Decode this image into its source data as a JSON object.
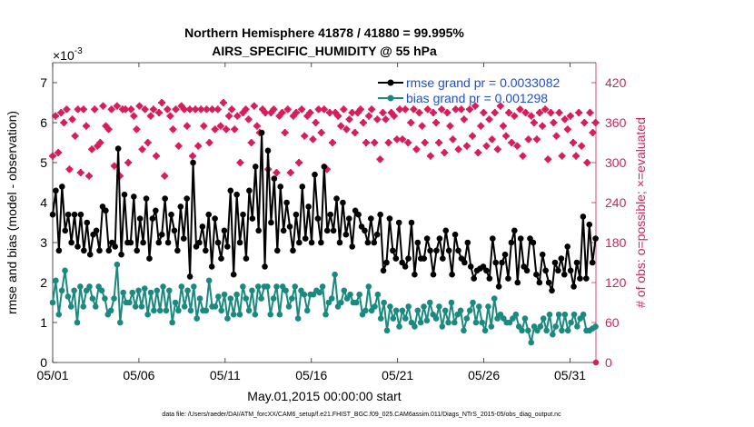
{
  "chart_data": {
    "type": "line",
    "title": [
      "Northern Hemisphere 41878 / 41880 = 99.995%",
      "AIRS_SPECIFIC_HUMIDITY @ 55 hPa"
    ],
    "xlabel": "May.01,2015 00:00:00 start",
    "ylabel_left": "rmse and bias (model - observation)",
    "ylabel_right": "# of obs: o=possible; ×=evaluated",
    "exponent_label": "×10",
    "exponent_power": "-3",
    "left_axis": {
      "ylim": [
        0,
        7.5
      ],
      "ticks": [
        "0",
        "1",
        "2",
        "3",
        "4",
        "5",
        "6",
        "7"
      ]
    },
    "right_axis": {
      "ylim": [
        0,
        450
      ],
      "ticks": [
        "0",
        "60",
        "120",
        "180",
        "240",
        "300",
        "360",
        "420"
      ]
    },
    "x_axis": {
      "xlim": [
        1,
        32.5
      ],
      "tick_values": [
        1,
        6,
        11,
        16,
        21,
        26,
        31
      ],
      "tick_labels": [
        "05/01",
        "05/06",
        "05/11",
        "05/16",
        "05/21",
        "05/26",
        "05/31"
      ]
    },
    "legend": {
      "position": "top-right",
      "entries": [
        "rmse grand pr = 0.0033082",
        "bias grand pr = 0.001298"
      ]
    },
    "footnote": "data file: /Users/raeder/DAI/ATM_forcXX/CAM6_setup/f.e21.FHIST_BGC.f09_025.CAM6assim.011/Diags_NTrS_2015-05/obs_diag_output.nc",
    "colors": {
      "rmse": "#000000",
      "bias": "#1a8a80",
      "obs": "#d61f5a",
      "right_axis": "#d61f5a"
    },
    "series": [
      {
        "name": "rmse",
        "values": [
          3.7,
          4.3,
          2.8,
          4.4,
          3.3,
          3.7,
          3.0,
          3.7,
          2.9,
          3.7,
          2.8,
          3.5,
          2.7,
          3.2,
          3.3,
          2.8,
          3.9,
          3.8,
          2.8,
          3.0,
          2.9,
          5.35,
          2.7,
          4.2,
          3.0,
          3.0,
          4.15,
          2.8,
          3.6,
          3.0,
          4.1,
          2.6,
          3.6,
          3.8,
          3.0,
          3.2,
          4.1,
          3.0,
          3.7,
          3.3,
          2.8,
          3.9,
          3.1,
          4.1,
          2.15,
          5.0,
          2.9,
          3.0,
          3.4,
          2.8,
          3.7,
          2.4,
          3.6,
          3.0,
          2.6,
          3.3,
          2.9,
          4.3,
          2.2,
          4.2,
          3.0,
          3.7,
          2.6,
          4.3,
          3.6,
          4.9,
          3.3,
          5.75,
          2.4,
          5.3,
          3.5,
          4.6,
          2.8,
          4.4,
          3.3,
          4.0,
          3.4,
          2.8,
          3.7,
          3.0,
          4.4,
          3.1,
          3.9,
          3.0,
          4.7,
          3.6,
          3.0,
          4.9,
          3.3,
          3.7,
          3.3,
          4.1,
          3.0,
          4.0,
          3.2,
          3.6,
          2.9,
          3.8,
          3.7,
          3.4,
          3.3,
          3.0,
          3.6,
          3.0,
          3.2,
          3.7,
          2.3,
          2.5,
          3.6,
          2.8,
          2.6,
          3.5,
          2.5,
          2.4,
          2.6,
          3.5,
          2.2,
          3.0,
          2.6,
          2.6,
          3.1,
          2.8,
          2.2,
          2.8,
          3.1,
          2.6,
          3.3,
          2.8,
          2.2,
          3.2,
          2.8,
          2.6,
          2.5,
          3.0,
          2.4,
          2.1,
          2.3,
          2.35,
          2.4,
          2.3,
          2.1,
          3.1,
          2.5,
          1.9,
          2.5,
          2.7,
          2.1,
          3.0,
          3.3,
          2.0,
          3.1,
          2.4,
          2.3,
          3.1,
          3.0,
          2.2,
          2.0,
          2.7,
          2.3,
          2.0,
          1.8,
          2.5,
          2.3,
          2.6,
          2.2,
          2.9,
          2.3,
          1.9,
          2.5,
          2.1,
          3.65,
          2.1,
          3.45,
          2.5,
          3.1
        ]
      },
      {
        "name": "bias",
        "values": [
          1.5,
          2.05,
          1.2,
          1.8,
          2.3,
          1.65,
          1.4,
          1.8,
          1.0,
          1.9,
          1.4,
          1.8,
          1.9,
          1.6,
          1.4,
          1.9,
          1.8,
          1.6,
          1.2,
          1.3,
          1.6,
          2.45,
          1.0,
          1.75,
          1.5,
          1.5,
          1.75,
          1.4,
          1.8,
          1.4,
          1.85,
          1.2,
          1.75,
          1.3,
          1.8,
          1.3,
          1.9,
          1.3,
          1.8,
          1.0,
          1.5,
          1.3,
          1.9,
          1.4,
          1.8,
          1.3,
          1.9,
          1.1,
          1.6,
          1.3,
          1.3,
          2.05,
          1.4,
          1.4,
          1.65,
          1.3,
          1.7,
          1.1,
          1.6,
          1.2,
          1.7,
          1.2,
          1.9,
          1.6,
          1.3,
          1.8,
          1.2,
          1.9,
          1.6,
          1.9,
          1.9,
          1.2,
          1.6,
          1.9,
          1.2,
          1.9,
          1.8,
          1.4,
          1.6,
          1.9,
          1.1,
          1.8,
          1.7,
          1.3,
          1.7,
          1.7,
          1.8,
          1.75,
          1.9,
          1.2,
          1.5,
          1.6,
          2.2,
          1.4,
          1.5,
          1.8,
          1.6,
          1.7,
          1.5,
          1.5,
          1.7,
          1.2,
          1.3,
          1.9,
          1.3,
          1.4,
          1.7,
          1.1,
          1.5,
          0.8,
          1.4,
          1.1,
          1.3,
          0.9,
          1.3,
          1.1,
          1.4,
          1.0,
          0.9,
          1.3,
          1.0,
          1.4,
          1.05,
          1.5,
          1.2,
          1.1,
          1.4,
          0.9,
          1.3,
          1.0,
          1.5,
          1.0,
          1.2,
          1.3,
          0.8,
          1.1,
          1.3,
          1.5,
          1.0,
          1.4,
          1.0,
          0.8,
          1.4,
          0.9,
          1.6,
          1.1,
          1.2,
          1.1,
          1.0,
          1.0,
          1.1,
          1.2,
          0.9,
          0.8,
          1.1,
          0.8,
          0.5,
          0.9,
          0.8,
          0.9,
          1.1,
          0.8,
          1.2,
          0.7,
          0.9,
          1.2,
          0.8,
          1.2,
          0.8,
          1.0,
          1.2,
          0.9,
          1.1,
          1.2,
          0.8,
          0.8,
          0.85,
          0.9
        ]
      },
      {
        "name": "obs",
        "values": [
          310,
          370,
          315,
          375,
          360,
          380,
          290,
          365,
          340,
          380,
          285,
          380,
          355,
          280,
          320,
          380,
          325,
          330,
          385,
          355,
          350,
          380,
          295,
          385,
          280,
          380,
          380,
          300,
          380,
          370,
          350,
          385,
          320,
          380,
          330,
          370,
          380,
          310,
          375,
          390,
          280,
          380,
          370,
          350,
          380,
          325,
          385,
          380,
          355,
          380,
          310,
          380,
          325,
          380,
          355,
          380,
          330,
          380,
          350,
          380,
          355,
          390,
          350,
          370,
          380,
          350,
          370,
          300,
          375,
          380,
          365,
          330,
          385,
          355,
          345,
          380,
          375,
          290,
          375,
          380,
          285,
          370,
          375,
          345,
          380,
          285,
          370,
          375,
          300,
          380,
          340,
          370,
          375,
          335,
          360,
          380,
          345,
          380,
          290,
          375,
          330,
          375,
          370,
          355,
          380,
          350,
          365,
          375,
          345,
          375,
          380,
          360,
          330,
          370,
          380,
          330,
          365,
          305,
          375,
          365,
          330,
          375,
          370,
          335,
          380,
          335,
          380,
          330,
          360,
          380,
          320,
          375,
          355,
          330,
          380,
          310,
          375,
          360,
          330,
          380,
          315,
          375,
          355,
          335,
          380,
          320,
          380,
          365,
          325,
          380,
          340,
          385,
          315,
          355,
          375,
          325,
          365,
          335,
          375,
          320,
          385,
          355,
          340,
          375,
          330,
          370,
          325,
          380,
          310,
          375,
          335,
          370,
          360,
          335,
          375,
          355,
          380,
          305,
          375,
          360,
          340,
          375,
          310,
          365,
          350,
          370,
          330,
          310,
          375,
          325,
          360,
          300,
          375,
          345,
          360
        ]
      }
    ]
  }
}
